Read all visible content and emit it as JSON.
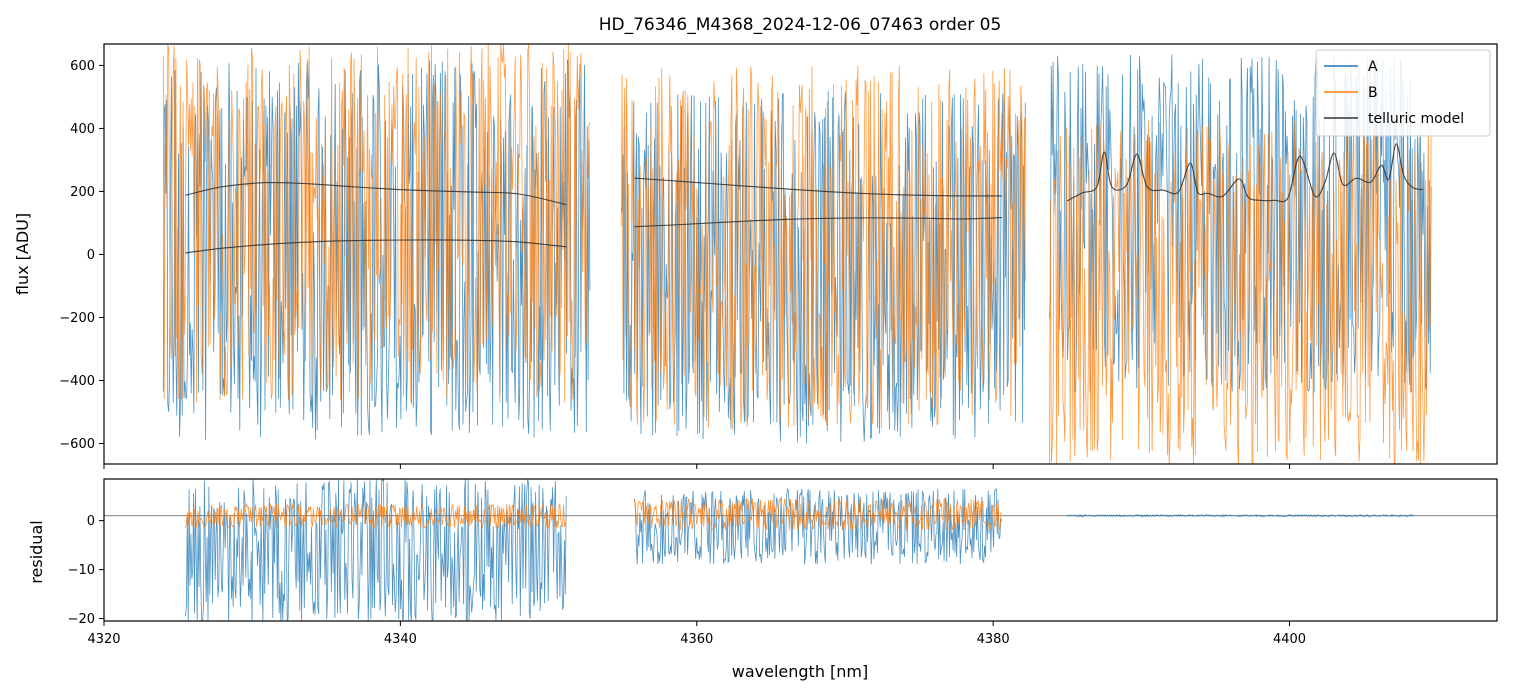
{
  "chart_data": [
    {
      "type": "line",
      "title": "HD_76346_M4368_2024-12-06_07463  order 05",
      "xlabel": "",
      "ylabel": "flux [ADU]",
      "xlim": [
        4320,
        4414
      ],
      "ylim": [
        -665,
        668
      ],
      "yticks": [
        -600,
        -400,
        -200,
        0,
        200,
        400,
        600
      ],
      "grid": false,
      "legend": {
        "position": "top-right",
        "entries": [
          "A",
          "B",
          "telluric model"
        ]
      },
      "colors": {
        "A": "#1f77b4",
        "B": "#ff7f0e",
        "model": "#333333"
      },
      "segments": [
        {
          "x_range": [
            4324.0,
            4352.8
          ],
          "A_envelope": [
            -590,
            620
          ],
          "B_envelope": [
            -470,
            680
          ],
          "model_upper": {
            "x": [
              4325.5,
              4328,
              4331,
              4334,
              4337,
              4341,
              4345,
              4348,
              4351.2
            ],
            "y": [
              188,
              215,
              228,
              224,
              214,
              204,
              198,
              192,
              158
            ]
          },
          "model_lower": {
            "x": [
              4325.5,
              4328,
              4331,
              4334,
              4337,
              4341,
              4345,
              4348,
              4351.2
            ],
            "y": [
              5,
              20,
              32,
              40,
              44,
              46,
              45,
              40,
              24
            ]
          }
        },
        {
          "x_range": [
            4354.9,
            4382.2
          ],
          "A_envelope": [
            -600,
            520
          ],
          "B_envelope": [
            -560,
            600
          ],
          "model_upper": {
            "x": [
              4355.8,
              4359,
              4363,
              4367,
              4371,
              4375,
              4378,
              4380.6
            ],
            "y": [
              242,
              232,
              218,
              205,
              194,
              188,
              186,
              186
            ]
          },
          "model_lower": {
            "x": [
              4355.8,
              4359,
              4363,
              4367,
              4371,
              4375,
              4378,
              4380.6
            ],
            "y": [
              88,
              95,
              105,
              113,
              116,
              115,
              113,
              117
            ]
          }
        },
        {
          "x_range": [
            4383.8,
            4409.6
          ],
          "A_envelope": [
            -440,
            640
          ],
          "B_envelope": [
            -680,
            430
          ],
          "model": {
            "x": [
              4385.0,
              4386.0,
              4387.0,
              4387.5,
              4388.0,
              4389.0,
              4389.7,
              4390.4,
              4391.5,
              4392.5,
              4393.3,
              4393.8,
              4394.5,
              4395.5,
              4396.6,
              4397.2,
              4398.0,
              4399.0,
              4399.9,
              4400.7,
              4401.7,
              4402.4,
              4403.0,
              4403.6,
              4404.5,
              4405.5,
              4406.2,
              4406.7,
              4407.2,
              4407.7,
              4408.3,
              4409.0
            ],
            "y": [
              170,
              195,
              215,
              325,
              215,
              220,
              318,
              214,
              204,
              198,
              290,
              198,
              194,
              185,
              240,
              182,
              172,
              172,
              180,
              312,
              186,
              230,
              322,
              222,
              242,
              230,
              283,
              238,
              351,
              252,
              213,
              206
            ]
          }
        }
      ]
    },
    {
      "type": "line",
      "title": "",
      "xlabel": "wavelength [nm]",
      "ylabel": "residual",
      "xlim": [
        4320,
        4414
      ],
      "ylim": [
        -20.5,
        8.5
      ],
      "xticks": [
        4320,
        4340,
        4360,
        4380,
        4400
      ],
      "yticks": [
        -20,
        -10,
        0
      ],
      "reference_line_y": 1,
      "segments": [
        {
          "x_range": [
            4325.5,
            4351.2
          ],
          "A_envelope": [
            -21,
            9
          ],
          "B_envelope": [
            -1.5,
            3.5
          ]
        },
        {
          "x_range": [
            4355.8,
            4380.6
          ],
          "A_envelope": [
            -9,
            6.5
          ],
          "B_envelope": [
            -2,
            4.5
          ]
        },
        {
          "x_range": [
            4385.0,
            4408.5
          ],
          "A_envelope": [
            0.8,
            1.2
          ],
          "B_envelope": []
        }
      ]
    }
  ]
}
